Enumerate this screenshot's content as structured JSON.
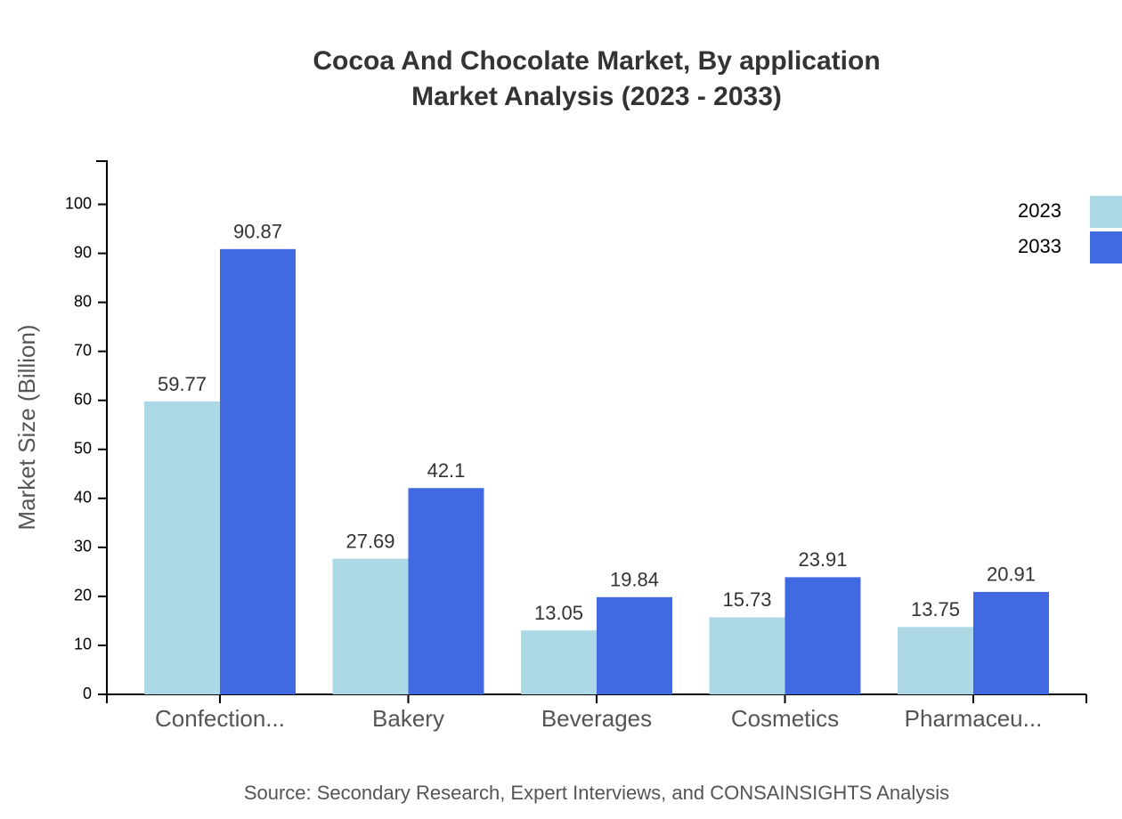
{
  "chart_data": {
    "type": "bar",
    "title": "Cocoa And Chocolate Market, By application",
    "subtitle": "Market Analysis (2023 - 2033)",
    "y_label": "Market Size (Billion)",
    "source": "Source: Secondary Research, Expert Interviews, and CONSAINSIGHTS Analysis",
    "categories": [
      "Confection...",
      "Bakery",
      "Beverages",
      "Cosmetics",
      "Pharmaceu..."
    ],
    "series": [
      {
        "name": "2023",
        "color": "#add8e6",
        "values": [
          59.77,
          27.69,
          13.05,
          15.73,
          13.75
        ]
      },
      {
        "name": "2033",
        "color": "#4169e1",
        "values": [
          90.87,
          42.1,
          19.84,
          23.91,
          20.91
        ]
      }
    ],
    "ylim": [
      0,
      109
    ],
    "yticks": [
      0,
      10,
      20,
      30,
      40,
      50,
      60,
      70,
      80,
      90,
      100
    ],
    "grid": false,
    "legend": "top-right"
  }
}
